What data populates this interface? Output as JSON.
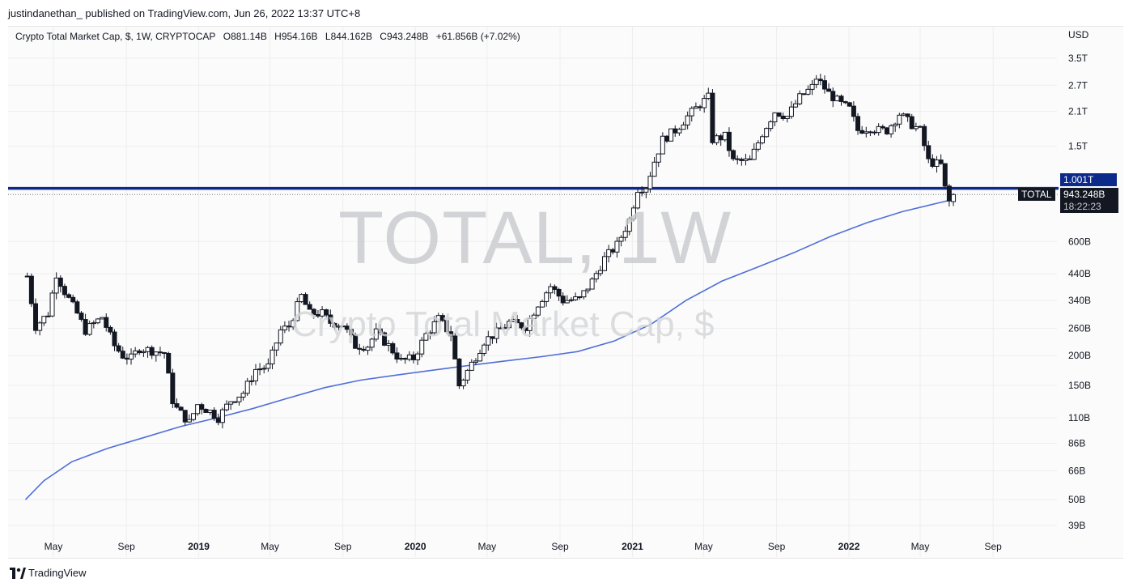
{
  "header": {
    "published_line": "justindanethan_ published on TradingView.com, Jun 26, 2022 13:37 UTC+8"
  },
  "legend": {
    "symbol": "Crypto Total Market Cap, $, 1W, CRYPTOCAP",
    "open": "O881.14B",
    "high": "H954.16B",
    "low": "L844.162B",
    "close": "C943.248B",
    "change": "+61.856B (+7.02%)"
  },
  "price_axis": {
    "currency": "USD"
  },
  "watermark": {
    "title": "TOTAL, 1W",
    "subtitle": "Crypto Total Market Cap, $"
  },
  "tags": {
    "level": "1.001T",
    "series": "TOTAL",
    "last": "943.248B",
    "countdown": "18:22:23"
  },
  "footer": {
    "brand": "TradingView"
  },
  "colors": {
    "up": "#ffffff",
    "down": "#131722",
    "ma_line": "#4f6fd8",
    "level_line": "#0d2a8a",
    "grid": "#eeeeee"
  },
  "chart_data": {
    "type": "candlestick",
    "title": "Crypto Total Market Cap, $, 1W, CRYPTOCAP",
    "ylabel": "USD",
    "log_scale": true,
    "ylim": [
      33000000000,
      4200000000000
    ],
    "y_ticks": [
      {
        "label": "3.5T",
        "value": 3500000000000
      },
      {
        "label": "2.7T",
        "value": 2700000000000
      },
      {
        "label": "2.1T",
        "value": 2100000000000
      },
      {
        "label": "1.5T",
        "value": 1500000000000
      },
      {
        "label": "600B",
        "value": 600000000000
      },
      {
        "label": "440B",
        "value": 440000000000
      },
      {
        "label": "340B",
        "value": 340000000000
      },
      {
        "label": "260B",
        "value": 260000000000
      },
      {
        "label": "200B",
        "value": 200000000000
      },
      {
        "label": "150B",
        "value": 150000000000
      },
      {
        "label": "110B",
        "value": 110000000000
      },
      {
        "label": "86B",
        "value": 86000000000
      },
      {
        "label": "66B",
        "value": 66000000000
      },
      {
        "label": "50B",
        "value": 50000000000
      },
      {
        "label": "39B",
        "value": 39000000000
      }
    ],
    "x_ticks": [
      {
        "label": "May",
        "date": "2018-05-01",
        "bold": false
      },
      {
        "label": "Sep",
        "date": "2018-09-01",
        "bold": false
      },
      {
        "label": "2019",
        "date": "2019-01-01",
        "bold": true
      },
      {
        "label": "May",
        "date": "2019-05-01",
        "bold": false
      },
      {
        "label": "Sep",
        "date": "2019-09-01",
        "bold": false
      },
      {
        "label": "2020",
        "date": "2020-01-01",
        "bold": true
      },
      {
        "label": "May",
        "date": "2020-05-01",
        "bold": false
      },
      {
        "label": "Sep",
        "date": "2020-09-01",
        "bold": false
      },
      {
        "label": "2021",
        "date": "2021-01-01",
        "bold": true
      },
      {
        "label": "May",
        "date": "2021-05-01",
        "bold": false
      },
      {
        "label": "Sep",
        "date": "2021-09-01",
        "bold": false
      },
      {
        "label": "2022",
        "date": "2022-01-01",
        "bold": true
      },
      {
        "label": "May",
        "date": "2022-05-01",
        "bold": false
      },
      {
        "label": "Sep",
        "date": "2022-09-01",
        "bold": false
      }
    ],
    "x_range": [
      "2018-03-15",
      "2022-11-05"
    ],
    "horizontal_level": 1001000000000,
    "last_price": 943248000000,
    "price_path": [
      [
        "2018-03-18",
        430
      ],
      [
        "2018-04-01",
        265
      ],
      [
        "2018-04-22",
        300
      ],
      [
        "2018-05-06",
        440
      ],
      [
        "2018-05-20",
        370
      ],
      [
        "2018-06-10",
        300
      ],
      [
        "2018-06-24",
        255
      ],
      [
        "2018-07-22",
        290
      ],
      [
        "2018-08-12",
        220
      ],
      [
        "2018-08-26",
        200
      ],
      [
        "2018-09-09",
        195
      ],
      [
        "2018-09-23",
        215
      ],
      [
        "2018-10-14",
        210
      ],
      [
        "2018-11-04",
        205
      ],
      [
        "2018-11-18",
        130
      ],
      [
        "2018-11-25",
        120
      ],
      [
        "2018-12-16",
        105
      ],
      [
        "2018-12-30",
        125
      ],
      [
        "2019-01-20",
        117
      ],
      [
        "2019-02-03",
        110
      ],
      [
        "2019-02-24",
        130
      ],
      [
        "2019-03-17",
        140
      ],
      [
        "2019-04-07",
        175
      ],
      [
        "2019-04-28",
        180
      ],
      [
        "2019-05-19",
        255
      ],
      [
        "2019-06-02",
        265
      ],
      [
        "2019-06-23",
        355
      ],
      [
        "2019-07-07",
        300
      ],
      [
        "2019-07-28",
        300
      ],
      [
        "2019-08-11",
        275
      ],
      [
        "2019-09-01",
        270
      ],
      [
        "2019-09-22",
        220
      ],
      [
        "2019-10-13",
        220
      ],
      [
        "2019-10-27",
        250
      ],
      [
        "2019-11-17",
        220
      ],
      [
        "2019-12-08",
        190
      ],
      [
        "2019-12-29",
        195
      ],
      [
        "2020-01-19",
        245
      ],
      [
        "2020-02-09",
        285
      ],
      [
        "2020-03-01",
        245
      ],
      [
        "2020-03-15",
        150
      ],
      [
        "2020-04-05",
        185
      ],
      [
        "2020-04-26",
        230
      ],
      [
        "2020-05-17",
        250
      ],
      [
        "2020-06-07",
        275
      ],
      [
        "2020-07-05",
        265
      ],
      [
        "2020-07-26",
        330
      ],
      [
        "2020-08-16",
        390
      ],
      [
        "2020-09-06",
        340
      ],
      [
        "2020-10-04",
        345
      ],
      [
        "2020-10-25",
        410
      ],
      [
        "2020-11-15",
        510
      ],
      [
        "2020-12-06",
        580
      ],
      [
        "2020-12-27",
        740
      ],
      [
        "2021-01-10",
        1000
      ],
      [
        "2021-01-24",
        1020
      ],
      [
        "2021-02-07",
        1300
      ],
      [
        "2021-02-21",
        1600
      ],
      [
        "2021-03-14",
        1750
      ],
      [
        "2021-04-04",
        2000
      ],
      [
        "2021-04-25",
        2250
      ],
      [
        "2021-05-09",
        2400
      ],
      [
        "2021-05-16",
        1600
      ],
      [
        "2021-06-06",
        1650
      ],
      [
        "2021-06-20",
        1300
      ],
      [
        "2021-07-18",
        1300
      ],
      [
        "2021-08-08",
        1700
      ],
      [
        "2021-08-29",
        2100
      ],
      [
        "2021-09-19",
        2000
      ],
      [
        "2021-10-10",
        2400
      ],
      [
        "2021-10-31",
        2650
      ],
      [
        "2021-11-07",
        2900
      ],
      [
        "2021-11-28",
        2500
      ],
      [
        "2021-12-19",
        2250
      ],
      [
        "2022-01-02",
        2150
      ],
      [
        "2022-01-16",
        1750
      ],
      [
        "2022-02-06",
        1800
      ],
      [
        "2022-02-20",
        1750
      ],
      [
        "2022-03-06",
        1750
      ],
      [
        "2022-03-27",
        2050
      ],
      [
        "2022-04-17",
        1850
      ],
      [
        "2022-05-01",
        1750
      ],
      [
        "2022-05-15",
        1300
      ],
      [
        "2022-06-05",
        1250
      ],
      [
        "2022-06-12",
        1000
      ],
      [
        "2022-06-19",
        880
      ],
      [
        "2022-06-26",
        943.248
      ]
    ],
    "price_path_units": "billions USD (approximate, read from chart)",
    "moving_average": [
      [
        "2018-03-15",
        50
      ],
      [
        "2018-04-15",
        60
      ],
      [
        "2018-06-01",
        72
      ],
      [
        "2018-08-01",
        82
      ],
      [
        "2018-10-01",
        91
      ],
      [
        "2018-12-01",
        101
      ],
      [
        "2019-02-01",
        110
      ],
      [
        "2019-04-01",
        120
      ],
      [
        "2019-06-01",
        133
      ],
      [
        "2019-08-01",
        147
      ],
      [
        "2019-10-01",
        158
      ],
      [
        "2019-12-01",
        166
      ],
      [
        "2020-02-01",
        174
      ],
      [
        "2020-04-01",
        182
      ],
      [
        "2020-06-01",
        190
      ],
      [
        "2020-08-01",
        198
      ],
      [
        "2020-10-01",
        208
      ],
      [
        "2020-12-01",
        230
      ],
      [
        "2021-02-01",
        270
      ],
      [
        "2021-04-01",
        340
      ],
      [
        "2021-06-01",
        410
      ],
      [
        "2021-08-01",
        470
      ],
      [
        "2021-10-01",
        540
      ],
      [
        "2021-12-01",
        630
      ],
      [
        "2022-02-01",
        720
      ],
      [
        "2022-04-01",
        800
      ],
      [
        "2022-06-01",
        870
      ],
      [
        "2022-06-26",
        900
      ]
    ],
    "moving_average_units": "billions USD (approximate, read from chart)"
  }
}
